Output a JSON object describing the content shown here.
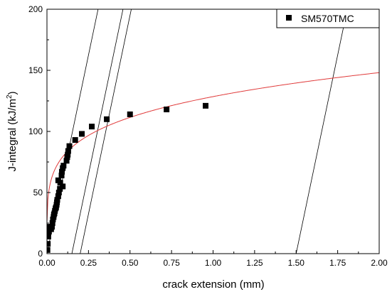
{
  "chart_data": {
    "type": "scatter",
    "xlabel": "crack extension (mm)",
    "ylabel_base": "J-integral (kJ/m",
    "ylabel_sup": "2",
    "ylabel_end": ")",
    "xlim": [
      0,
      2.0
    ],
    "ylim": [
      0,
      200
    ],
    "x_ticks": [
      "0.00",
      "0.25",
      "0.50",
      "0.75",
      "1.00",
      "1.25",
      "1.50",
      "1.75",
      "2.00"
    ],
    "y_ticks": [
      "0",
      "50",
      "100",
      "150",
      "200"
    ],
    "grid": false,
    "legend_position": "top-right",
    "series": [
      {
        "name": "SM570TMC",
        "marker": "square",
        "color": "#000000",
        "points": [
          [
            0.003,
            3
          ],
          [
            0.005,
            8
          ],
          [
            0.008,
            14
          ],
          [
            0.012,
            18
          ],
          [
            0.018,
            22
          ],
          [
            0.025,
            20
          ],
          [
            0.03,
            22
          ],
          [
            0.033,
            25
          ],
          [
            0.036,
            28
          ],
          [
            0.04,
            30
          ],
          [
            0.042,
            32
          ],
          [
            0.045,
            33
          ],
          [
            0.048,
            35
          ],
          [
            0.052,
            37
          ],
          [
            0.055,
            38
          ],
          [
            0.058,
            40
          ],
          [
            0.06,
            42
          ],
          [
            0.062,
            44
          ],
          [
            0.068,
            47
          ],
          [
            0.072,
            50
          ],
          [
            0.078,
            53
          ],
          [
            0.068,
            60
          ],
          [
            0.08,
            58
          ],
          [
            0.095,
            55
          ],
          [
            0.088,
            64
          ],
          [
            0.09,
            67
          ],
          [
            0.095,
            70
          ],
          [
            0.1,
            72
          ],
          [
            0.118,
            76
          ],
          [
            0.122,
            79
          ],
          [
            0.125,
            81
          ],
          [
            0.128,
            84
          ],
          [
            0.135,
            88
          ],
          [
            0.17,
            93
          ],
          [
            0.21,
            98
          ],
          [
            0.27,
            104
          ],
          [
            0.36,
            110
          ],
          [
            0.5,
            114
          ],
          [
            0.72,
            118
          ],
          [
            0.955,
            121
          ]
        ]
      }
    ],
    "fit_curve": {
      "color": "#e03a3a",
      "C": 128.5,
      "n": 0.205
    },
    "construction_lines": [
      {
        "x0": 0.0,
        "slope": 650
      },
      {
        "x0": 0.15,
        "slope": 650
      },
      {
        "x0": 0.2,
        "slope": 650
      },
      {
        "x0": 1.5,
        "slope": 650
      }
    ]
  }
}
